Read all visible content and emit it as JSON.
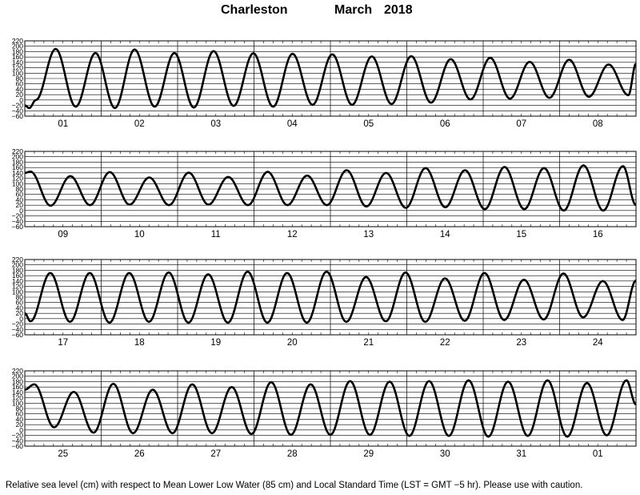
{
  "title": {
    "station": "Charleston",
    "month": "March",
    "year": "2018"
  },
  "footer": "Relative sea level (cm) with respect to Mean Lower Low Water (85 cm) and Local Standard Time (LST = GMT −5 hr). Please use with caution.",
  "chart_data": {
    "type": "line",
    "ylabel": "",
    "ylim": [
      -60,
      220
    ],
    "y_ticks": [
      "220",
      "200",
      "180",
      "160",
      "140",
      "120",
      "100",
      "80",
      "60",
      "40",
      "20",
      "0",
      "−20",
      "−40",
      "−60"
    ],
    "grid": true,
    "x_unit": "hours from panel start (LST)",
    "panels": [
      {
        "days": [
          "01",
          "02",
          "03",
          "04",
          "05",
          "06",
          "07",
          "08"
        ],
        "series": [
          {
            "x": [
              0,
              1.4,
              3.5,
              9.7,
              16.0,
              22.2,
              28.3,
              34.5,
              40.8,
              47.0,
              53.1,
              59.3,
              65.6,
              71.8,
              78.0,
              84.1,
              90.4,
              96.6,
              102.8,
              109.0,
              115.2,
              121.4,
              127.6,
              133.8,
              140.0,
              146.2,
              152.4,
              158.6,
              164.8,
              171.0,
              177.2,
              183.4,
              189.6,
              192
            ],
            "y": [
              -20,
              -30,
              0,
              190,
              -25,
              175,
              -30,
              188,
              -25,
              175,
              -28,
              182,
              -22,
              174,
              -25,
              172,
              -18,
              170,
              -18,
              162,
              -15,
              163,
              -10,
              152,
              2,
              157,
              5,
              142,
              8,
              150,
              12,
              132,
              18,
              135
            ]
          }
        ]
      },
      {
        "days": [
          "09",
          "10",
          "11",
          "12",
          "13",
          "14",
          "15",
          "16"
        ],
        "series": [
          {
            "x": [
              0,
              1.8,
              8.1,
              14.3,
              20.5,
              26.7,
              32.9,
              39.1,
              45.3,
              51.5,
              57.7,
              63.9,
              70.1,
              76.3,
              82.5,
              88.7,
              94.9,
              101.1,
              107.3,
              113.5,
              119.7,
              125.9,
              132.1,
              138.3,
              144.5,
              150.7,
              156.9,
              163.1,
              169.3,
              175.5,
              181.7,
              187.9,
              192
            ],
            "y": [
              140,
              145,
              18,
              128,
              20,
              143,
              22,
              123,
              20,
              141,
              22,
              125,
              20,
              144,
              20,
              130,
              20,
              150,
              15,
              140,
              10,
              158,
              12,
              150,
              5,
              162,
              5,
              158,
              0,
              168,
              0,
              165,
              20
            ]
          }
        ]
      },
      {
        "days": [
          "17",
          "18",
          "19",
          "20",
          "21",
          "22",
          "23",
          "24"
        ],
        "series": [
          {
            "x": [
              0,
              1.8,
              8.0,
              14.2,
              20.4,
              26.6,
              32.8,
              39.0,
              45.2,
              51.4,
              57.6,
              63.8,
              70.0,
              76.2,
              82.4,
              88.6,
              94.8,
              101.0,
              107.2,
              113.4,
              119.6,
              125.8,
              132.0,
              138.2,
              144.4,
              150.6,
              156.8,
              163.0,
              169.2,
              175.4,
              181.6,
              187.8,
              192
            ],
            "y": [
              20,
              -10,
              170,
              -12,
              170,
              -15,
              170,
              -12,
              172,
              -15,
              165,
              -15,
              175,
              -15,
              170,
              -15,
              175,
              -12,
              155,
              -10,
              172,
              -12,
              150,
              -8,
              170,
              -5,
              145,
              -3,
              168,
              5,
              140,
              -5,
              142
            ]
          }
        ]
      },
      {
        "days": [
          "25",
          "26",
          "27",
          "28",
          "29",
          "30",
          "31",
          "01"
        ],
        "series": [
          {
            "x": [
              0,
              3.0,
              9.2,
              15.4,
              21.6,
              27.8,
              34.0,
              40.2,
              46.4,
              52.6,
              58.8,
              65.0,
              71.2,
              77.4,
              83.6,
              89.8,
              96.0,
              102.2,
              108.4,
              114.6,
              120.8,
              127.0,
              133.2,
              139.4,
              145.6,
              151.8,
              158.0,
              164.2,
              170.4,
              176.6,
              182.8,
              189.0,
              192
            ],
            "y": [
              150,
              170,
              10,
              142,
              -10,
              172,
              -12,
              150,
              -12,
              170,
              -12,
              160,
              -15,
              178,
              -18,
              170,
              -18,
              182,
              -18,
              180,
              -22,
              182,
              -22,
              185,
              -25,
              180,
              -22,
              185,
              -25,
              175,
              -20,
              185,
              95
            ]
          }
        ]
      }
    ]
  }
}
